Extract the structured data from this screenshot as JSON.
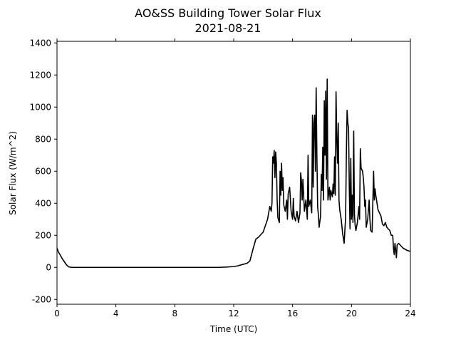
{
  "chart_data": {
    "type": "line",
    "title": "AO&SS Building Tower Solar Flux",
    "subtitle": "2021-08-21",
    "xlabel": "Time (UTC)",
    "ylabel": "Solar Flux (W/m^2)",
    "xlim": [
      0,
      24
    ],
    "ylim": [
      -230,
      1410
    ],
    "xticks": [
      0,
      4,
      8,
      12,
      16,
      20,
      24
    ],
    "yticks": [
      -200,
      0,
      200,
      400,
      600,
      800,
      1000,
      1200,
      1400
    ],
    "grid": false,
    "legend": "none",
    "colors": {
      "line": "#000000"
    },
    "series": [
      {
        "values": [
          [
            0.0,
            120
          ],
          [
            0.1,
            95
          ],
          [
            0.2,
            80
          ],
          [
            0.35,
            55
          ],
          [
            0.5,
            35
          ],
          [
            0.65,
            15
          ],
          [
            0.8,
            3
          ],
          [
            1.0,
            0
          ],
          [
            2.0,
            0
          ],
          [
            4.0,
            0
          ],
          [
            6.0,
            0
          ],
          [
            8.0,
            0
          ],
          [
            10.0,
            0
          ],
          [
            11.0,
            0
          ],
          [
            11.5,
            2
          ],
          [
            12.0,
            5
          ],
          [
            12.3,
            10
          ],
          [
            12.6,
            18
          ],
          [
            12.9,
            25
          ],
          [
            13.1,
            40
          ],
          [
            13.3,
            110
          ],
          [
            13.5,
            175
          ],
          [
            13.7,
            190
          ],
          [
            13.85,
            205
          ],
          [
            14.0,
            220
          ],
          [
            14.15,
            260
          ],
          [
            14.3,
            300
          ],
          [
            14.45,
            380
          ],
          [
            14.55,
            350
          ],
          [
            14.6,
            400
          ],
          [
            14.65,
            690
          ],
          [
            14.7,
            650
          ],
          [
            14.75,
            730
          ],
          [
            14.8,
            560
          ],
          [
            14.85,
            720
          ],
          [
            14.9,
            650
          ],
          [
            14.95,
            420
          ],
          [
            15.0,
            310
          ],
          [
            15.1,
            280
          ],
          [
            15.15,
            600
          ],
          [
            15.2,
            450
          ],
          [
            15.25,
            650
          ],
          [
            15.3,
            480
          ],
          [
            15.35,
            560
          ],
          [
            15.4,
            390
          ],
          [
            15.5,
            350
          ],
          [
            15.6,
            420
          ],
          [
            15.65,
            300
          ],
          [
            15.7,
            460
          ],
          [
            15.8,
            500
          ],
          [
            15.9,
            350
          ],
          [
            16.0,
            300
          ],
          [
            16.05,
            430
          ],
          [
            16.1,
            320
          ],
          [
            16.2,
            290
          ],
          [
            16.3,
            350
          ],
          [
            16.4,
            280
          ],
          [
            16.5,
            340
          ],
          [
            16.55,
            590
          ],
          [
            16.6,
            540
          ],
          [
            16.65,
            420
          ],
          [
            16.7,
            550
          ],
          [
            16.8,
            350
          ],
          [
            16.9,
            420
          ],
          [
            17.0,
            300
          ],
          [
            17.05,
            700
          ],
          [
            17.1,
            380
          ],
          [
            17.2,
            420
          ],
          [
            17.3,
            340
          ],
          [
            17.35,
            950
          ],
          [
            17.4,
            500
          ],
          [
            17.45,
            900
          ],
          [
            17.5,
            950
          ],
          [
            17.55,
            600
          ],
          [
            17.6,
            1120
          ],
          [
            17.65,
            700
          ],
          [
            17.7,
            380
          ],
          [
            17.75,
            330
          ],
          [
            17.8,
            250
          ],
          [
            17.9,
            320
          ],
          [
            17.95,
            580
          ],
          [
            18.0,
            480
          ],
          [
            18.05,
            750
          ],
          [
            18.1,
            420
          ],
          [
            18.15,
            1040
          ],
          [
            18.2,
            700
          ],
          [
            18.25,
            1100
          ],
          [
            18.3,
            550
          ],
          [
            18.35,
            1175
          ],
          [
            18.4,
            420
          ],
          [
            18.5,
            500
          ],
          [
            18.55,
            420
          ],
          [
            18.6,
            480
          ],
          [
            18.7,
            440
          ],
          [
            18.75,
            520
          ],
          [
            18.8,
            460
          ],
          [
            18.85,
            690
          ],
          [
            18.9,
            450
          ],
          [
            18.95,
            1095
          ],
          [
            19.0,
            800
          ],
          [
            19.05,
            650
          ],
          [
            19.1,
            900
          ],
          [
            19.15,
            420
          ],
          [
            19.2,
            360
          ],
          [
            19.3,
            300
          ],
          [
            19.4,
            210
          ],
          [
            19.5,
            150
          ],
          [
            19.6,
            310
          ],
          [
            19.65,
            700
          ],
          [
            19.7,
            980
          ],
          [
            19.75,
            900
          ],
          [
            19.8,
            870
          ],
          [
            19.85,
            500
          ],
          [
            19.9,
            240
          ],
          [
            19.95,
            680
          ],
          [
            20.0,
            300
          ],
          [
            20.05,
            450
          ],
          [
            20.1,
            280
          ],
          [
            20.15,
            850
          ],
          [
            20.2,
            330
          ],
          [
            20.25,
            260
          ],
          [
            20.3,
            230
          ],
          [
            20.4,
            280
          ],
          [
            20.5,
            380
          ],
          [
            20.55,
            300
          ],
          [
            20.6,
            740
          ],
          [
            20.65,
            620
          ],
          [
            20.7,
            610
          ],
          [
            20.75,
            600
          ],
          [
            20.8,
            560
          ],
          [
            20.85,
            500
          ],
          [
            20.9,
            380
          ],
          [
            20.95,
            420
          ],
          [
            21.0,
            250
          ],
          [
            21.1,
            300
          ],
          [
            21.2,
            420
          ],
          [
            21.25,
            300
          ],
          [
            21.3,
            230
          ],
          [
            21.4,
            220
          ],
          [
            21.5,
            600
          ],
          [
            21.55,
            420
          ],
          [
            21.6,
            490
          ],
          [
            21.65,
            450
          ],
          [
            21.7,
            420
          ],
          [
            21.8,
            360
          ],
          [
            21.9,
            340
          ],
          [
            22.0,
            320
          ],
          [
            22.1,
            270
          ],
          [
            22.2,
            260
          ],
          [
            22.3,
            280
          ],
          [
            22.4,
            250
          ],
          [
            22.5,
            240
          ],
          [
            22.6,
            230
          ],
          [
            22.7,
            200
          ],
          [
            22.8,
            200
          ],
          [
            22.85,
            120
          ],
          [
            22.9,
            80
          ],
          [
            22.95,
            150
          ],
          [
            23.0,
            110
          ],
          [
            23.05,
            60
          ],
          [
            23.1,
            140
          ],
          [
            23.2,
            150
          ],
          [
            23.3,
            140
          ],
          [
            23.4,
            130
          ],
          [
            23.5,
            120
          ],
          [
            23.6,
            115
          ],
          [
            23.7,
            110
          ],
          [
            23.8,
            105
          ],
          [
            24.0,
            100
          ]
        ]
      }
    ]
  }
}
